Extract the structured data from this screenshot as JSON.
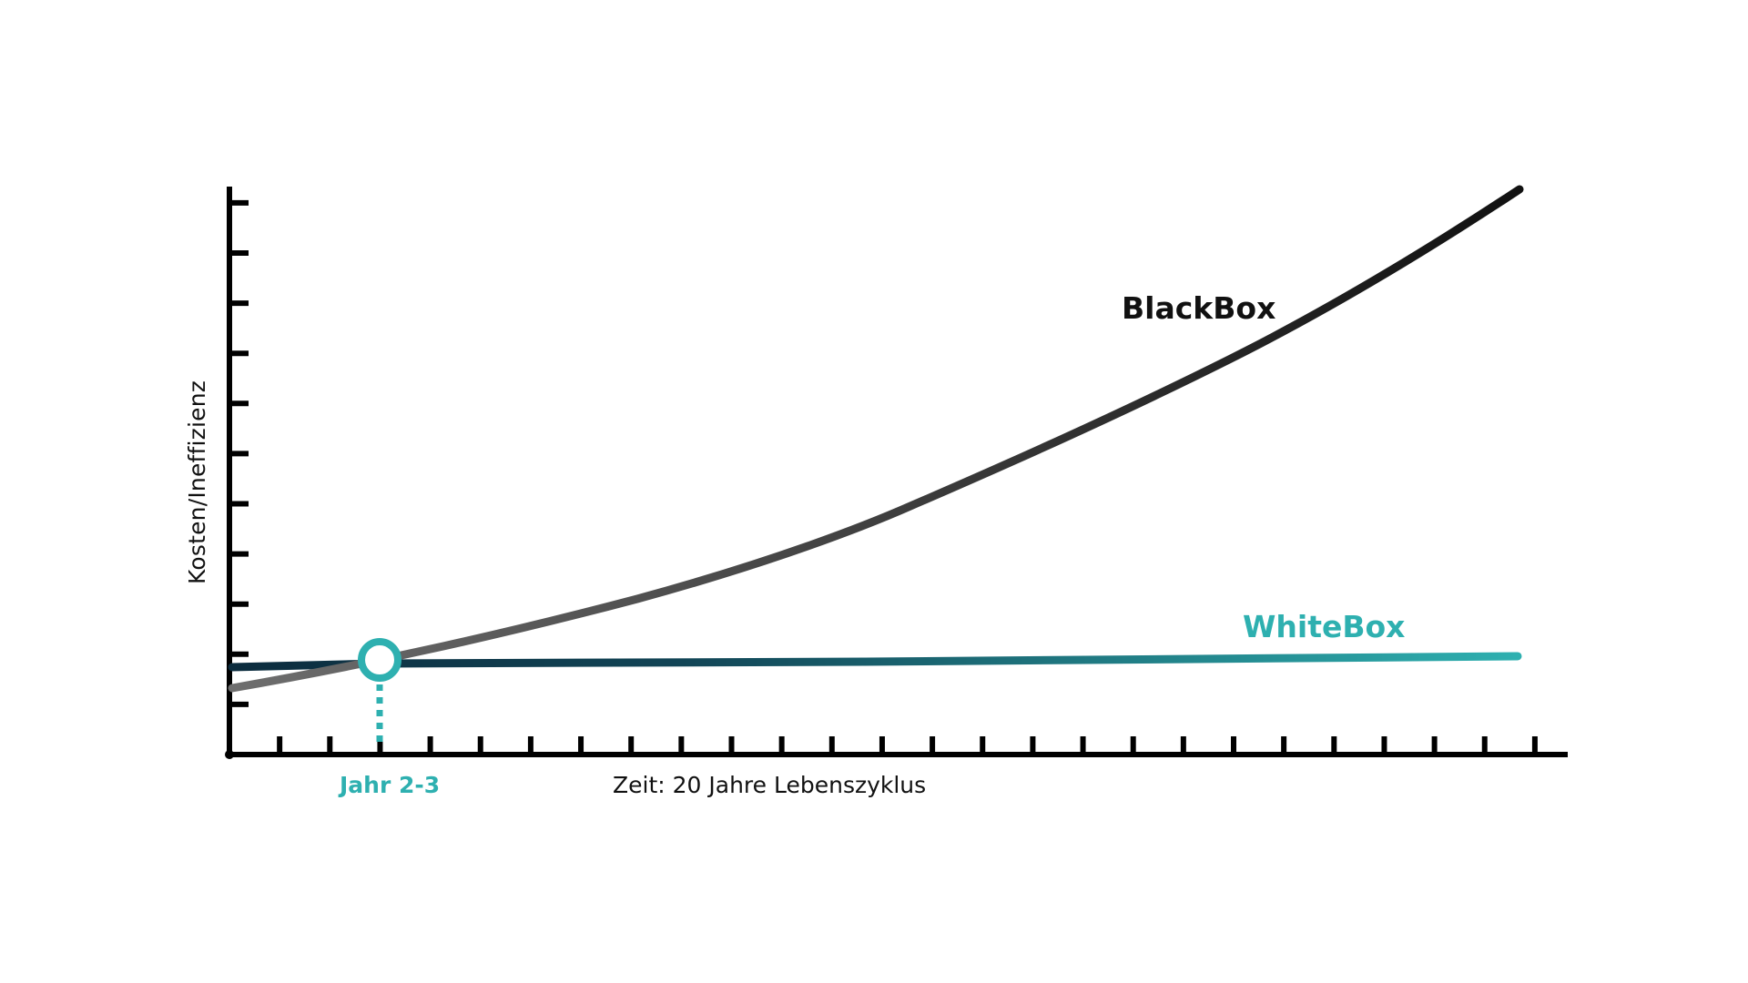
{
  "chart_data": {
    "type": "line",
    "title": "",
    "xlabel": "Zeit: 20 Jahre Lebenszyklus",
    "ylabel": "Kosten/Ineffizienz",
    "x_unit": "Jahre",
    "xlim": [
      0,
      20.5
    ],
    "ylim": [
      0,
      11.5
    ],
    "x_tick_count": 26,
    "y_tick_count": 11,
    "tick_labels_shown": false,
    "grid": false,
    "legend": "inline labels",
    "series": [
      {
        "name": "BlackBox",
        "color": "#111111",
        "color_start": "#6e6e6e",
        "x": [
          0.0,
          2.3,
          4.9,
          7.7,
          10.6,
          15.5,
          16.9,
          18.3,
          20.0
        ],
        "values": [
          1.3,
          1.9,
          2.7,
          3.7,
          5.0,
          7.9,
          8.6,
          9.9,
          11.3
        ]
      },
      {
        "name": "WhiteBox",
        "color": "#2eb0b0",
        "color_start": "#0c2c3e",
        "x": [
          0.0,
          2.3,
          10.0,
          20.0
        ],
        "values": [
          1.74,
          1.8,
          1.86,
          1.96
        ]
      }
    ],
    "annotations": [
      {
        "type": "intersection-marker",
        "label": "Jahr 2-3",
        "x": 2.3,
        "y": 1.9,
        "color": "#2eb0b0"
      }
    ]
  },
  "labels": {
    "ylabel": "Kosten/Ineffizienz",
    "xlabel": "Zeit: 20 Jahre Lebenszyklus",
    "marker": "Jahr 2-3",
    "blackbox": "BlackBox",
    "whitebox": "WhiteBox"
  },
  "colors": {
    "axis": "#000000",
    "accent": "#2eb0b0",
    "blackbox": "#111111",
    "whitebox_start": "#0c2c3e",
    "whitebox_end": "#2eb0b0"
  }
}
